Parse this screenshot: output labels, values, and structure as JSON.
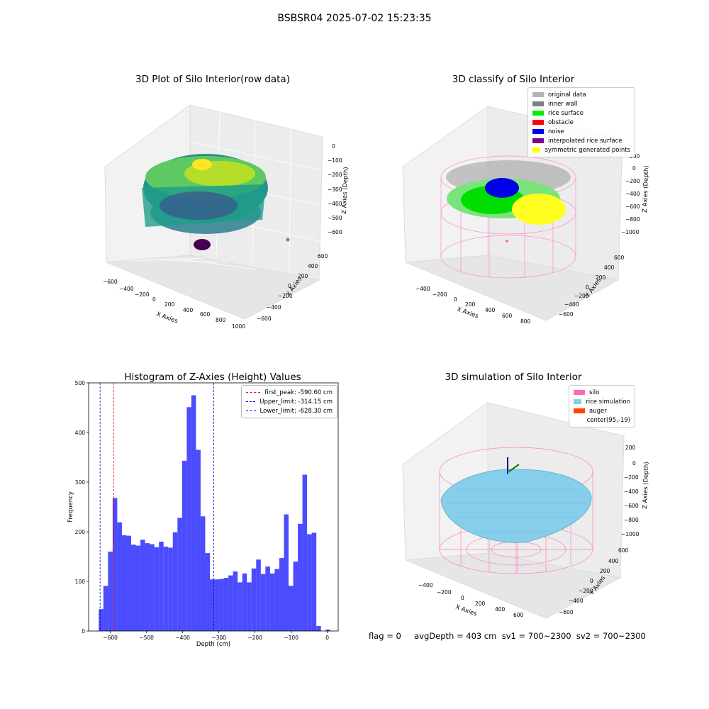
{
  "suptitle": "BSBSR04 2025-07-02 15:23:35",
  "status_text": "flag = 0     avgDepth = 403 cm  sv1 = 700~2300  sv2 = 700~2300",
  "panels": {
    "p1": {
      "title": "3D Plot of Silo Interior(row data)",
      "xlabel": "X Axies",
      "ylabel": "Y Axies",
      "zlabel": "Z Axies (Depth)",
      "xticks": [
        "−600",
        "−400",
        "−200",
        "0",
        "200",
        "400",
        "600",
        "800",
        "1000"
      ],
      "yticks": [
        "600",
        "400",
        "200",
        "0",
        "−200",
        "−400",
        "−600"
      ],
      "zticks": [
        "0",
        "−100",
        "−200",
        "−300",
        "−400",
        "−500",
        "−600"
      ]
    },
    "p2": {
      "title": "3D classify of Silo Interior",
      "xlabel": "X Axies",
      "ylabel": "Y Axies",
      "zlabel": "Z Axies (Depth)",
      "xticks": [
        "−400",
        "−200",
        "0",
        "200",
        "400",
        "600",
        "800"
      ],
      "yticks": [
        "600",
        "400",
        "200",
        "0",
        "−200",
        "−400",
        "−600"
      ],
      "zticks": [
        "200",
        "0",
        "−200",
        "−400",
        "−600",
        "−800",
        "−1000"
      ],
      "legend": [
        {
          "label": "original data",
          "color": "#b3b3b3"
        },
        {
          "label": "inner wall",
          "color": "#808080"
        },
        {
          "label": "rice surface",
          "color": "#00ee00"
        },
        {
          "label": "obstacle",
          "color": "#ff0000"
        },
        {
          "label": "noise",
          "color": "#0000ee"
        },
        {
          "label": "interpolated rice surface",
          "color": "#800080"
        },
        {
          "label": "symmetric generated points",
          "color": "#ffff00"
        }
      ]
    },
    "p4": {
      "title": "3D simulation of Silo Interior",
      "xlabel": "X Axies",
      "ylabel": "Y Axies",
      "zlabel": "Z Axies (Depth)",
      "xticks": [
        "−400",
        "−200",
        "0",
        "200",
        "400",
        "600"
      ],
      "yticks": [
        "600",
        "400",
        "200",
        "0",
        "−200",
        "−400",
        "−600"
      ],
      "zticks": [
        "200",
        "0",
        "−200",
        "−400",
        "−600",
        "−800",
        "−1000"
      ],
      "legend": [
        {
          "label": "silo",
          "color": "#ff69b4"
        },
        {
          "label": "rice simulation",
          "color": "#87ceeb"
        },
        {
          "label": "auger",
          "color": "#ff4500"
        },
        {
          "label": "center(95,-19)",
          "color": "#ffffff"
        }
      ]
    }
  },
  "chart_data": [
    {
      "type": "bar",
      "title": "Histogram of Z-Axies (Height) Values",
      "xlabel": "Depth (cm)",
      "ylabel": "Frequency",
      "xlim": [
        -660,
        30
      ],
      "ylim": [
        0,
        500
      ],
      "xticks": [
        -600,
        -500,
        -400,
        -300,
        -200,
        -100,
        0
      ],
      "xtick_labels": [
        "−600",
        "−500",
        "−400",
        "−300",
        "−200",
        "−100",
        "0"
      ],
      "yticks": [
        0,
        100,
        200,
        300,
        400,
        500
      ],
      "bin_start": -632,
      "bin_width": 12.8,
      "values": [
        44,
        91,
        160,
        268,
        219,
        193,
        192,
        174,
        172,
        184,
        177,
        175,
        169,
        180,
        170,
        168,
        199,
        228,
        343,
        451,
        475,
        365,
        231,
        157,
        104,
        104,
        105,
        107,
        112,
        120,
        98,
        116,
        98,
        126,
        144,
        115,
        130,
        116,
        125,
        147,
        235,
        91,
        140,
        216,
        315,
        195,
        198,
        10,
        0,
        3
      ],
      "color": "#0000ff",
      "vlines": [
        {
          "label": "first_peak: -590.60 cm",
          "x": -590.6,
          "color": "#ff0000"
        },
        {
          "label": "Upper_limit: -314.15 cm",
          "x": -314.15,
          "color": "#0000cc"
        },
        {
          "label": "Lower_limit: -628.30 cm",
          "x": -628.3,
          "color": "#0000cc"
        }
      ]
    }
  ]
}
